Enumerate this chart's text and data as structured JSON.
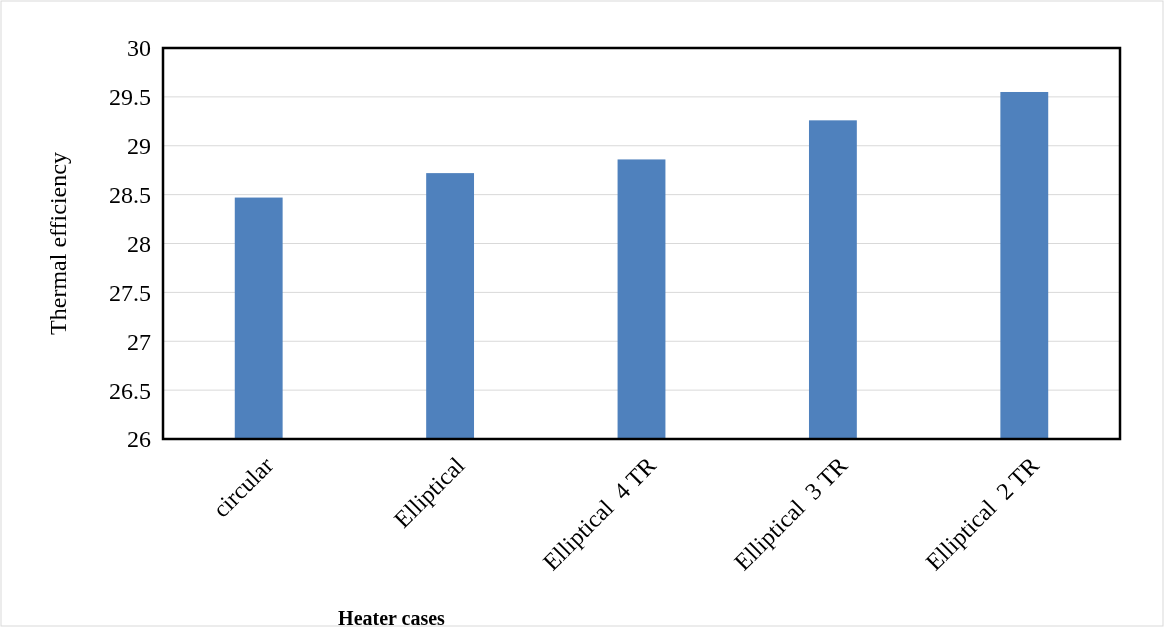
{
  "chart_data": {
    "type": "bar",
    "xlabel": "Heater cases",
    "ylabel": "Thermal efficiency",
    "categories": [
      "circular",
      "Elliptical",
      "Elliptical  4 TR",
      "Elliptical  3 TR",
      "Elliptical  2 TR"
    ],
    "values": [
      28.47,
      28.72,
      28.86,
      29.26,
      29.55
    ],
    "color": "#4f81bd",
    "ylim": [
      26,
      30
    ],
    "yticks": [
      26,
      26.5,
      27,
      27.5,
      28,
      28.5,
      29,
      29.5,
      30
    ],
    "grid": "y"
  }
}
